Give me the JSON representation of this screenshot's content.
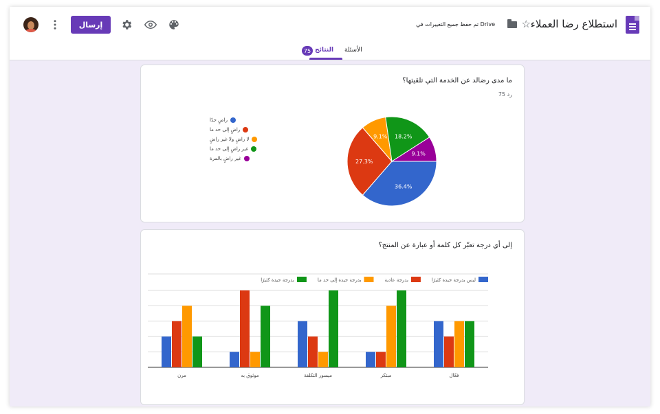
{
  "header": {
    "title": "استطلاع رضا العملاء",
    "saved_status": "تم حفظ جميع التغييرات في Drive",
    "send_label": "إرسال"
  },
  "tabs": [
    {
      "label": "الأسئلة",
      "active": false
    },
    {
      "label": "النتائج",
      "active": true,
      "count": "75"
    }
  ],
  "colors": {
    "accent": "#673ab7",
    "blue": "#3366cc",
    "red": "#dc3912",
    "orange": "#ff9900",
    "green": "#109618",
    "purple": "#990099"
  },
  "question1": {
    "title": "ما مدى رضالد عن الخدمة التي تلقيتها؟",
    "responses": "75 رد"
  },
  "question2": {
    "title": "إلى أي درجة تعبّر كل كلمة أو عبارة عن المنتج؟"
  },
  "chart_data": [
    {
      "type": "pie",
      "categories": [
        "راضٍ جدًا",
        "راضٍ إلى حد ما",
        "لا راضٍ ولا غير راضٍ",
        "غير راضٍ إلى حد ما",
        "غير راضٍ بالمرة"
      ],
      "values": [
        36.4,
        27.3,
        9.1,
        18.2,
        9.1
      ],
      "labels": [
        "36.4%",
        "27.3%",
        "9.1%",
        "18.2%",
        "9.1%"
      ],
      "colors": [
        "#3366cc",
        "#dc3912",
        "#ff9900",
        "#109618",
        "#990099"
      ],
      "legend": "left"
    },
    {
      "type": "bar",
      "categories": [
        "فعّال",
        "مبتكر",
        "ميسور التكلفة",
        "موثوق به",
        "مرن"
      ],
      "series": [
        {
          "name": "ليس بدرجة جيدة كثيرًا",
          "color": "#3366cc",
          "values": [
            3,
            1,
            3,
            1,
            2
          ]
        },
        {
          "name": "بدرجة عادية",
          "color": "#dc3912",
          "values": [
            2,
            1,
            2,
            5,
            3
          ]
        },
        {
          "name": "بدرجة جيدة إلى حد ما",
          "color": "#ff9900",
          "values": [
            3,
            4,
            1,
            1,
            4
          ]
        },
        {
          "name": "بدرجة جيدة كثيرًا",
          "color": "#109618",
          "values": [
            3,
            5,
            5,
            4,
            2
          ]
        }
      ],
      "ylim": [
        0,
        5
      ],
      "grid": true,
      "legend": "top"
    }
  ]
}
